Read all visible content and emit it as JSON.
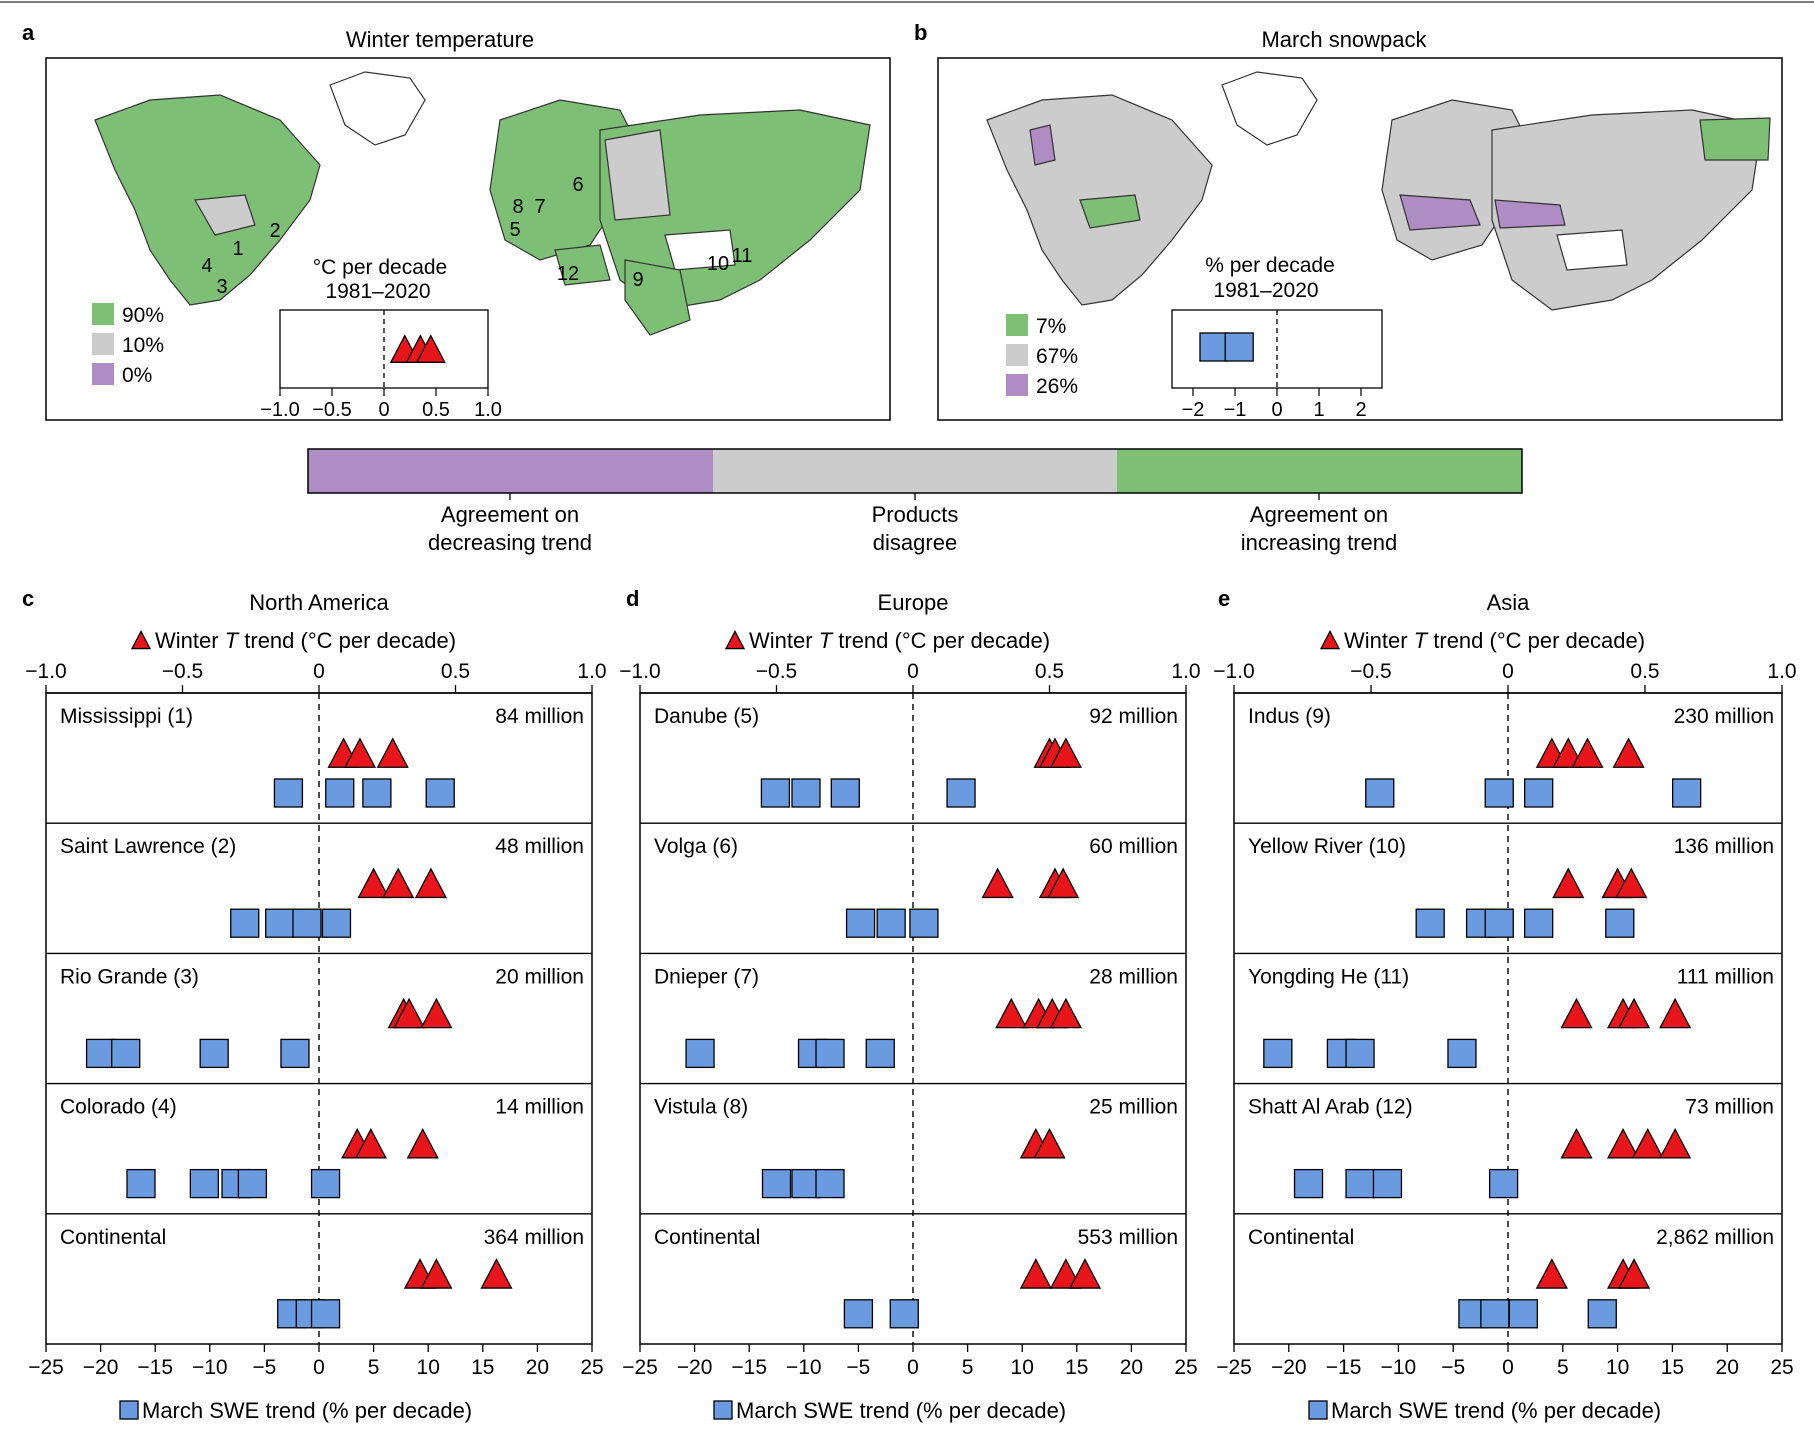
{
  "panel_letters": [
    "a",
    "b",
    "c",
    "d",
    "e"
  ],
  "maps": [
    {
      "title": "Winter temperature",
      "inset_unit": "°C per decade",
      "inset_period": "1981–2020",
      "inset_ticks": [
        "−1.0",
        "−0.5",
        "0",
        "0.5",
        "1.0"
      ],
      "inset_range": [
        -1.0,
        1.0
      ],
      "inset_marker": "triangle",
      "inset_values": [
        0.2,
        0.35,
        0.45
      ],
      "legend": [
        {
          "label": "90%",
          "color": "#7dbf74"
        },
        {
          "label": "10%",
          "color": "#cccccc"
        },
        {
          "label": "0%",
          "color": "#b08cc4"
        }
      ],
      "basin_labels": [
        "1",
        "2",
        "3",
        "4",
        "5",
        "6",
        "7",
        "8",
        "9",
        "10",
        "11",
        "12"
      ]
    },
    {
      "title": "March snowpack",
      "inset_unit": "% per decade",
      "inset_period": "1981–2020",
      "inset_ticks": [
        "−2",
        "−1",
        "0",
        "1",
        "2"
      ],
      "inset_range": [
        -2.5,
        2.5
      ],
      "inset_marker": "square",
      "inset_values": [
        -1.5,
        -0.9
      ],
      "legend": [
        {
          "label": "7%",
          "color": "#7dbf74"
        },
        {
          "label": "67%",
          "color": "#cccccc"
        },
        {
          "label": "26%",
          "color": "#b08cc4"
        }
      ]
    }
  ],
  "colorbar": [
    {
      "label_lines": [
        "Agreement on",
        "decreasing trend"
      ],
      "color": "#b08cc4"
    },
    {
      "label_lines": [
        "Products",
        "disagree"
      ],
      "color": "#cccccc"
    },
    {
      "label_lines": [
        "Agreement on",
        "increasing trend"
      ],
      "color": "#7dbf74"
    }
  ],
  "colors": {
    "triangle_fill": "#e8161b",
    "square_fill": "#6a9ae0",
    "green": "#7dbf74",
    "grey": "#cccccc",
    "purple": "#b08cc4"
  },
  "chart_data": [
    {
      "type": "scatter",
      "title": "North America",
      "top_axis": {
        "label_pre": "Winter ",
        "label_italic": "T",
        "label_post": " trend (°C per decade)",
        "ticks": [
          "−1.0",
          "−0.5",
          "0",
          "0.5",
          "1.0"
        ],
        "range": [
          -1.0,
          1.0
        ]
      },
      "bottom_axis": {
        "label": "March SWE trend (% per decade)",
        "ticks": [
          "−25",
          "−20",
          "−15",
          "−10",
          "−5",
          "0",
          "5",
          "10",
          "15",
          "20",
          "25"
        ],
        "range": [
          -25,
          25
        ]
      },
      "rows": [
        {
          "name": "Mississippi (1)",
          "population": "84 million",
          "temp_trend": [
            0.09,
            0.15,
            0.27
          ],
          "swe_trend": [
            -2.8,
            1.9,
            5.3,
            11.1
          ]
        },
        {
          "name": "Saint Lawrence (2)",
          "population": "48 million",
          "temp_trend": [
            0.2,
            0.29,
            0.41
          ],
          "swe_trend": [
            -6.8,
            -3.6,
            -1.1,
            1.6
          ]
        },
        {
          "name": "Rio Grande (3)",
          "population": "20 million",
          "temp_trend": [
            0.31,
            0.33,
            0.43
          ],
          "swe_trend": [
            -20.0,
            -17.7,
            -9.6,
            -2.2
          ]
        },
        {
          "name": "Colorado (4)",
          "population": "14 million",
          "temp_trend": [
            0.14,
            0.19,
            0.38
          ],
          "swe_trend": [
            -16.3,
            -10.5,
            -7.6,
            -6.1,
            0.6
          ]
        },
        {
          "name": "Continental",
          "population": "364 million",
          "temp_trend": [
            0.37,
            0.43,
            0.65
          ],
          "swe_trend": [
            -2.5,
            -0.8,
            0.6
          ]
        }
      ]
    },
    {
      "type": "scatter",
      "title": "Europe",
      "top_axis": {
        "label_pre": "Winter ",
        "label_italic": "T",
        "label_post": " trend (°C per decade)",
        "ticks": [
          "−1.0",
          "−0.5",
          "0",
          "0.5",
          "1.0"
        ],
        "range": [
          -1.0,
          1.0
        ]
      },
      "bottom_axis": {
        "label": "March SWE trend (% per decade)",
        "ticks": [
          "−25",
          "−20",
          "−15",
          "−10",
          "−5",
          "0",
          "5",
          "10",
          "15",
          "20",
          "25"
        ],
        "range": [
          -25,
          25
        ]
      },
      "rows": [
        {
          "name": "Danube (5)",
          "population": "92 million",
          "temp_trend": [
            0.5,
            0.52,
            0.56
          ],
          "swe_trend": [
            -12.6,
            -9.8,
            -6.2,
            4.4
          ]
        },
        {
          "name": "Volga (6)",
          "population": "60 million",
          "temp_trend": [
            0.31,
            0.52,
            0.55
          ],
          "swe_trend": [
            -4.8,
            -2.0,
            1.0
          ]
        },
        {
          "name": "Dnieper (7)",
          "population": "28 million",
          "temp_trend": [
            0.36,
            0.46,
            0.51,
            0.56
          ],
          "swe_trend": [
            -19.5,
            -9.2,
            -7.6,
            -3.0
          ]
        },
        {
          "name": "Vistula (8)",
          "population": "25 million",
          "temp_trend": [
            0.45,
            0.5
          ],
          "swe_trend": [
            -12.5,
            -9.8,
            -7.6
          ]
        },
        {
          "name": "Continental",
          "population": "553 million",
          "temp_trend": [
            0.45,
            0.56,
            0.63
          ],
          "swe_trend": [
            -5.0,
            -0.8
          ]
        }
      ]
    },
    {
      "type": "scatter",
      "title": "Asia",
      "top_axis": {
        "label_pre": "Winter ",
        "label_italic": "T",
        "label_post": " trend (°C per decade)",
        "ticks": [
          "−1.0",
          "−0.5",
          "0",
          "0.5",
          "1.0"
        ],
        "range": [
          -1.0,
          1.0
        ]
      },
      "bottom_axis": {
        "label": "March SWE trend (% per decade)",
        "ticks": [
          "−25",
          "−20",
          "−15",
          "−10",
          "−5",
          "0",
          "5",
          "10",
          "15",
          "20",
          "25"
        ],
        "range": [
          -25,
          25
        ]
      },
      "rows": [
        {
          "name": "Indus (9)",
          "population": "230 million",
          "temp_trend": [
            0.16,
            0.22,
            0.29,
            0.44
          ],
          "swe_trend": [
            -11.7,
            -0.8,
            2.8,
            16.3
          ]
        },
        {
          "name": "Yellow River (10)",
          "population": "136 million",
          "temp_trend": [
            0.22,
            0.4,
            0.45
          ],
          "swe_trend": [
            -7.1,
            -2.5,
            -0.8,
            2.8,
            10.2
          ]
        },
        {
          "name": "Yongding He (11)",
          "population": "111 million",
          "temp_trend": [
            0.25,
            0.42,
            0.46,
            0.61
          ],
          "swe_trend": [
            -21.0,
            -15.2,
            -13.5,
            -4.2
          ]
        },
        {
          "name": "Shatt Al Arab (12)",
          "population": "73 million",
          "temp_trend": [
            0.25,
            0.42,
            0.51,
            0.61
          ],
          "swe_trend": [
            -18.2,
            -13.5,
            -11.0,
            -0.4
          ]
        },
        {
          "name": "Continental",
          "population": "2,862 million",
          "temp_trend": [
            0.16,
            0.42,
            0.46
          ],
          "swe_trend": [
            -3.2,
            -1.2,
            1.4,
            8.6
          ]
        }
      ]
    }
  ]
}
